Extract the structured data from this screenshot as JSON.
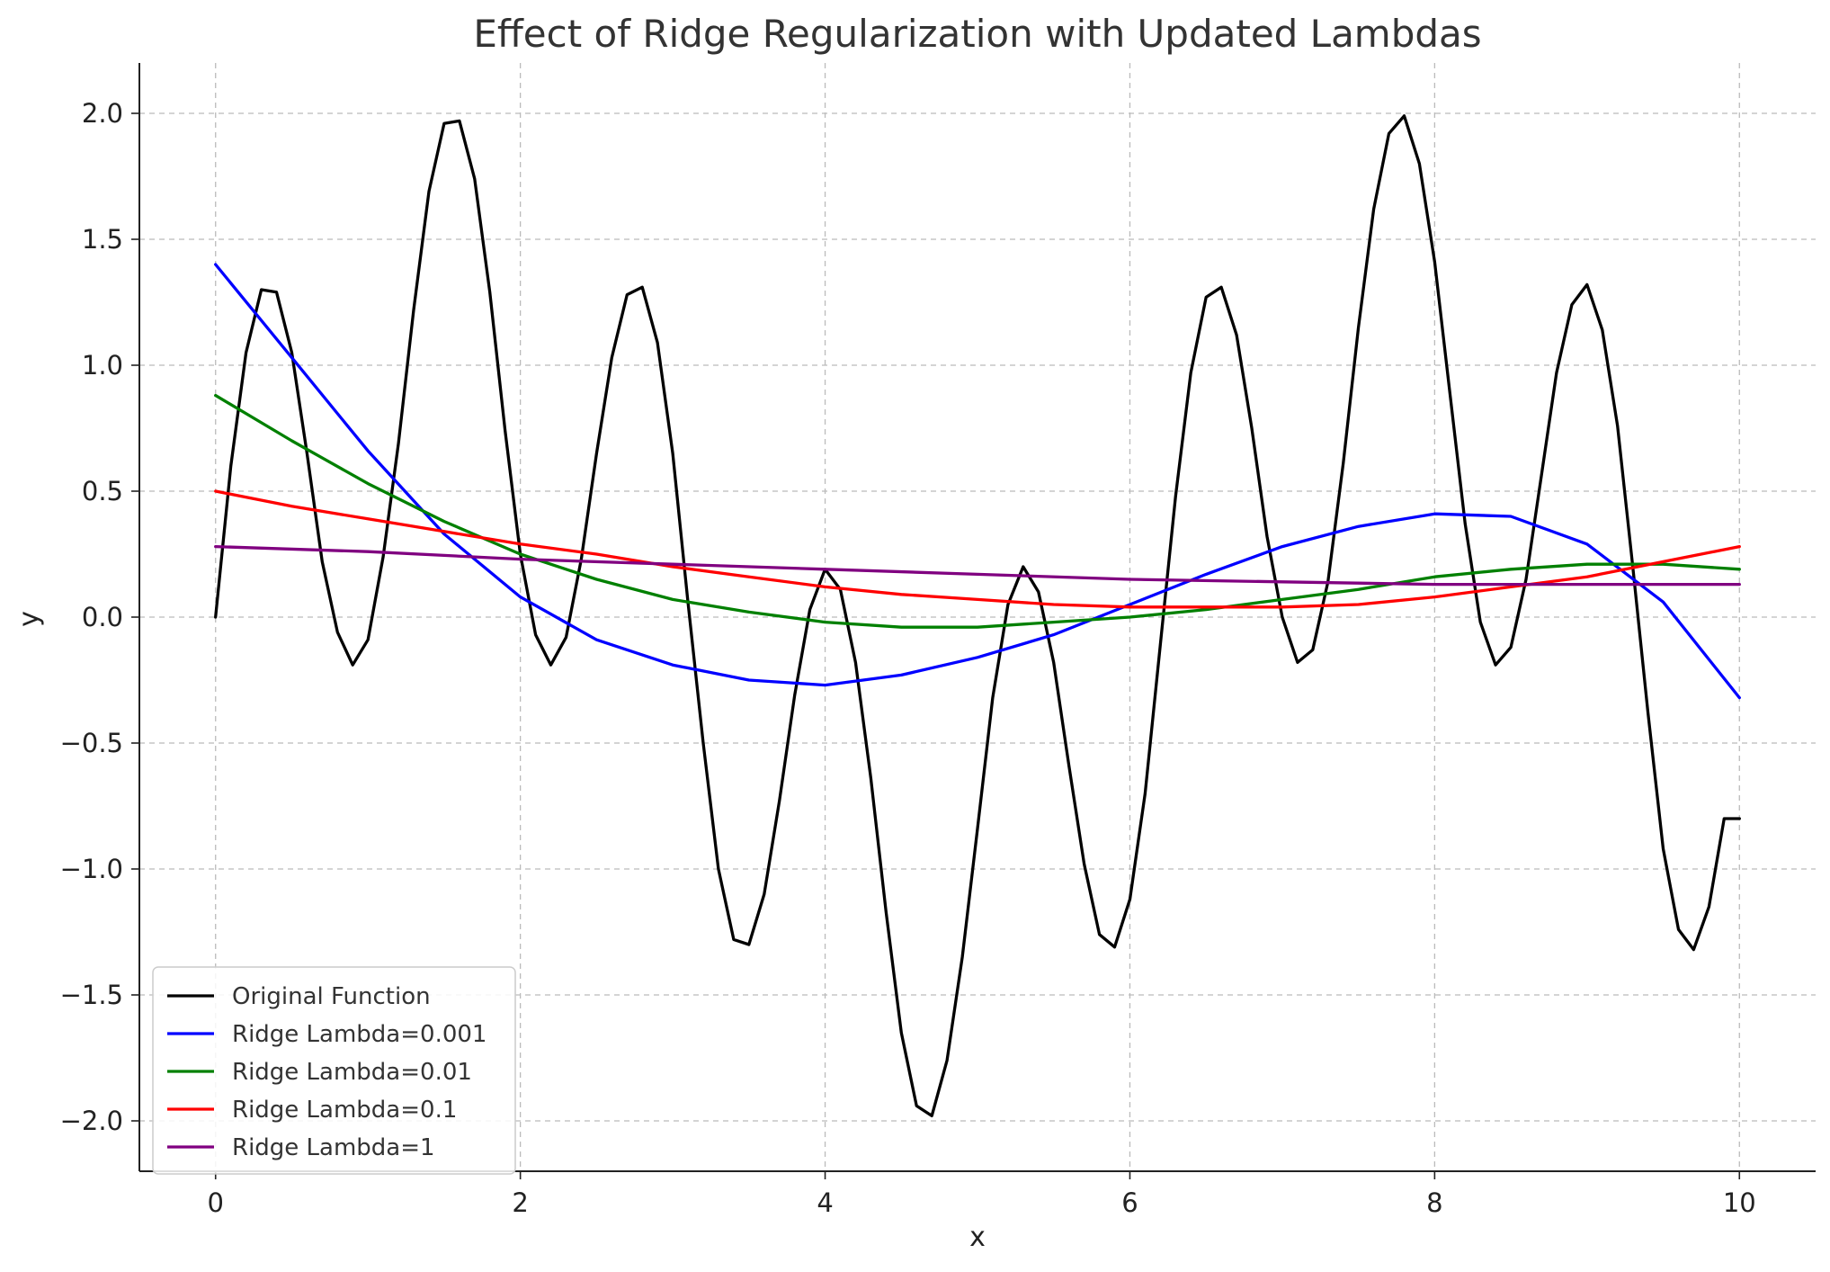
{
  "chart_data": {
    "type": "line",
    "title": "Effect of Ridge Regularization with Updated Lambdas",
    "xlabel": "x",
    "ylabel": "y",
    "xlim": [
      -0.5,
      10.5
    ],
    "ylim": [
      -2.2,
      2.2
    ],
    "grid": true,
    "legend_position": "lower-left",
    "x_ticks": [
      0,
      2,
      4,
      6,
      8,
      10
    ],
    "x_tick_labels": [
      "0",
      "2",
      "4",
      "6",
      "8",
      "10"
    ],
    "y_ticks": [
      2.0,
      1.5,
      1.0,
      0.5,
      0.0,
      -0.5,
      -1.0,
      -1.5,
      -2.0
    ],
    "y_tick_labels": [
      "2.0",
      "1.5",
      "1.0",
      "0.5",
      "0.0",
      "−0.5",
      "−1.0",
      "−1.5",
      "−2.0"
    ],
    "series": [
      {
        "name": "Original Function",
        "color": "#000000",
        "x": [
          0,
          0.1,
          0.2,
          0.3,
          0.4,
          0.5,
          0.6,
          0.7,
          0.8,
          0.9,
          1.0,
          1.1,
          1.2,
          1.3,
          1.4,
          1.5,
          1.6,
          1.7,
          1.8,
          1.9,
          2.0,
          2.1,
          2.2,
          2.3,
          2.4,
          2.5,
          2.6,
          2.7,
          2.8,
          2.9,
          3.0,
          3.1,
          3.2,
          3.3,
          3.4,
          3.5,
          3.6,
          3.7,
          3.8,
          3.9,
          4.0,
          4.1,
          4.2,
          4.3,
          4.4,
          4.5,
          4.6,
          4.7,
          4.8,
          4.9,
          5.0,
          5.1,
          5.2,
          5.3,
          5.4,
          5.5,
          5.6,
          5.7,
          5.8,
          5.9,
          6.0,
          6.1,
          6.2,
          6.3,
          6.4,
          6.5,
          6.6,
          6.7,
          6.8,
          6.9,
          7.0,
          7.1,
          7.2,
          7.3,
          7.4,
          7.5,
          7.6,
          7.7,
          7.8,
          7.9,
          8.0,
          8.1,
          8.2,
          8.3,
          8.4,
          8.5,
          8.6,
          8.7,
          8.8,
          8.9,
          9.0,
          9.1,
          9.2,
          9.3,
          9.4,
          9.5,
          9.6,
          9.7,
          9.8,
          9.9,
          10.0
        ],
        "y": [
          0.0,
          0.6,
          1.05,
          1.3,
          1.29,
          1.05,
          0.65,
          0.22,
          -0.06,
          -0.19,
          -0.09,
          0.24,
          0.69,
          1.22,
          1.69,
          1.96,
          1.97,
          1.74,
          1.29,
          0.74,
          0.25,
          -0.07,
          -0.19,
          -0.08,
          0.23,
          0.65,
          1.03,
          1.28,
          1.31,
          1.09,
          0.65,
          0.06,
          -0.5,
          -1.0,
          -1.28,
          -1.3,
          -1.1,
          -0.73,
          -0.31,
          0.03,
          0.19,
          0.11,
          -0.18,
          -0.64,
          -1.17,
          -1.65,
          -1.94,
          -1.98,
          -1.76,
          -1.35,
          -0.84,
          -0.32,
          0.05,
          0.2,
          0.1,
          -0.18,
          -0.59,
          -0.98,
          -1.26,
          -1.31,
          -1.12,
          -0.7,
          -0.11,
          0.48,
          0.97,
          1.27,
          1.31,
          1.12,
          0.75,
          0.32,
          0.0,
          -0.18,
          -0.13,
          0.14,
          0.61,
          1.15,
          1.62,
          1.92,
          1.99,
          1.8,
          1.41,
          0.89,
          0.37,
          -0.02,
          -0.19,
          -0.12,
          0.15,
          0.56,
          0.97,
          1.24,
          1.32,
          1.14,
          0.76,
          0.2,
          -0.38,
          -0.92,
          -1.24,
          -1.32,
          -1.15,
          -0.8,
          -0.8
        ]
      },
      {
        "name": "Ridge Lambda=0.001",
        "color": "#0000ff",
        "x": [
          0,
          0.5,
          1.0,
          1.5,
          2.0,
          2.5,
          3.0,
          3.5,
          4.0,
          4.5,
          5.0,
          5.5,
          6.0,
          6.5,
          7.0,
          7.5,
          8.0,
          8.5,
          9.0,
          9.5,
          10.0
        ],
        "y": [
          1.4,
          1.03,
          0.66,
          0.33,
          0.08,
          -0.09,
          -0.19,
          -0.25,
          -0.27,
          -0.23,
          -0.16,
          -0.07,
          0.05,
          0.17,
          0.28,
          0.36,
          0.41,
          0.4,
          0.29,
          0.06,
          -0.32
        ]
      },
      {
        "name": "Ridge Lambda=0.01",
        "color": "#008000",
        "x": [
          0,
          0.5,
          1.0,
          1.5,
          2.0,
          2.5,
          3.0,
          3.5,
          4.0,
          4.5,
          5.0,
          5.5,
          6.0,
          6.5,
          7.0,
          7.5,
          8.0,
          8.5,
          9.0,
          9.5,
          10.0
        ],
        "y": [
          0.88,
          0.7,
          0.53,
          0.38,
          0.25,
          0.15,
          0.07,
          0.02,
          -0.02,
          -0.04,
          -0.04,
          -0.02,
          0.0,
          0.03,
          0.07,
          0.11,
          0.16,
          0.19,
          0.21,
          0.21,
          0.19
        ]
      },
      {
        "name": "Ridge Lambda=0.1",
        "color": "#ff0000",
        "x": [
          0,
          0.5,
          1.0,
          1.5,
          2.0,
          2.5,
          3.0,
          3.5,
          4.0,
          4.5,
          5.0,
          5.5,
          6.0,
          6.5,
          7.0,
          7.5,
          8.0,
          8.5,
          9.0,
          9.5,
          10.0
        ],
        "y": [
          0.5,
          0.44,
          0.39,
          0.34,
          0.29,
          0.25,
          0.2,
          0.16,
          0.12,
          0.09,
          0.07,
          0.05,
          0.04,
          0.04,
          0.04,
          0.05,
          0.08,
          0.12,
          0.16,
          0.22,
          0.28
        ]
      },
      {
        "name": "Ridge Lambda=1",
        "color": "#800080",
        "x": [
          0,
          1,
          2,
          3,
          4,
          5,
          6,
          7,
          8,
          9,
          10
        ],
        "y": [
          0.28,
          0.26,
          0.23,
          0.21,
          0.19,
          0.17,
          0.15,
          0.14,
          0.13,
          0.13,
          0.13
        ]
      }
    ]
  }
}
